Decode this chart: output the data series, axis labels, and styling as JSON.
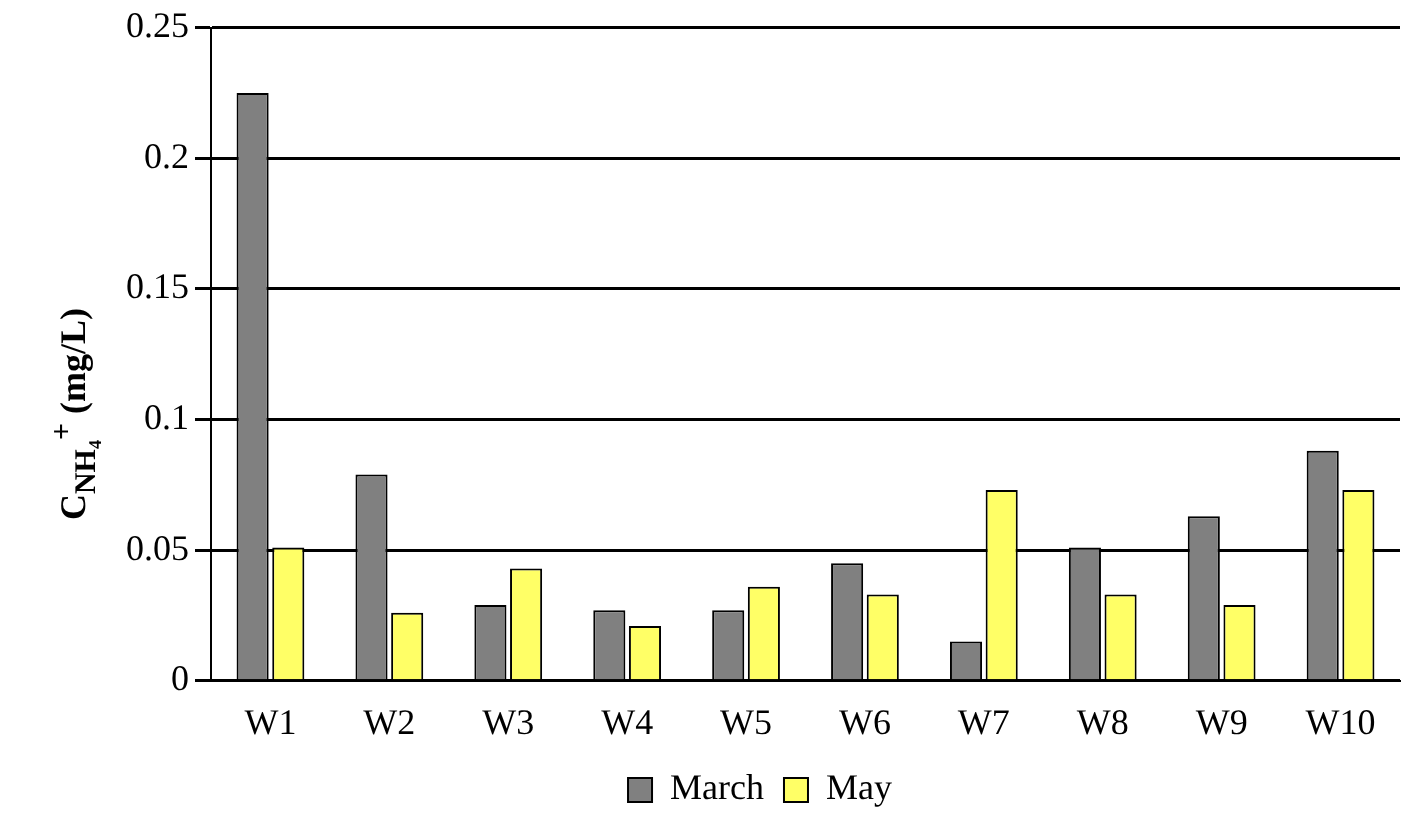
{
  "chart_data": {
    "type": "bar",
    "ylabel": "C$_{NH₄}$$^{+}$ (mg/L)",
    "categories": [
      "W1",
      "W2",
      "W3",
      "W4",
      "W5",
      "W6",
      "W7",
      "W8",
      "W9",
      "W10"
    ],
    "series": [
      {
        "name": "March",
        "color": "#808080",
        "values": [
          0.225,
          0.079,
          0.029,
          0.027,
          0.027,
          0.045,
          0.015,
          0.051,
          0.063,
          0.088
        ]
      },
      {
        "name": "May",
        "color": "#ffff66",
        "values": [
          0.051,
          0.026,
          0.043,
          0.021,
          0.036,
          0.033,
          0.073,
          0.033,
          0.029,
          0.073
        ]
      }
    ],
    "ylim": [
      0,
      0.25
    ],
    "yticks": [
      0,
      0.05,
      0.1,
      0.15,
      0.2,
      0.25
    ],
    "grid": "y",
    "legend": "bottom"
  }
}
